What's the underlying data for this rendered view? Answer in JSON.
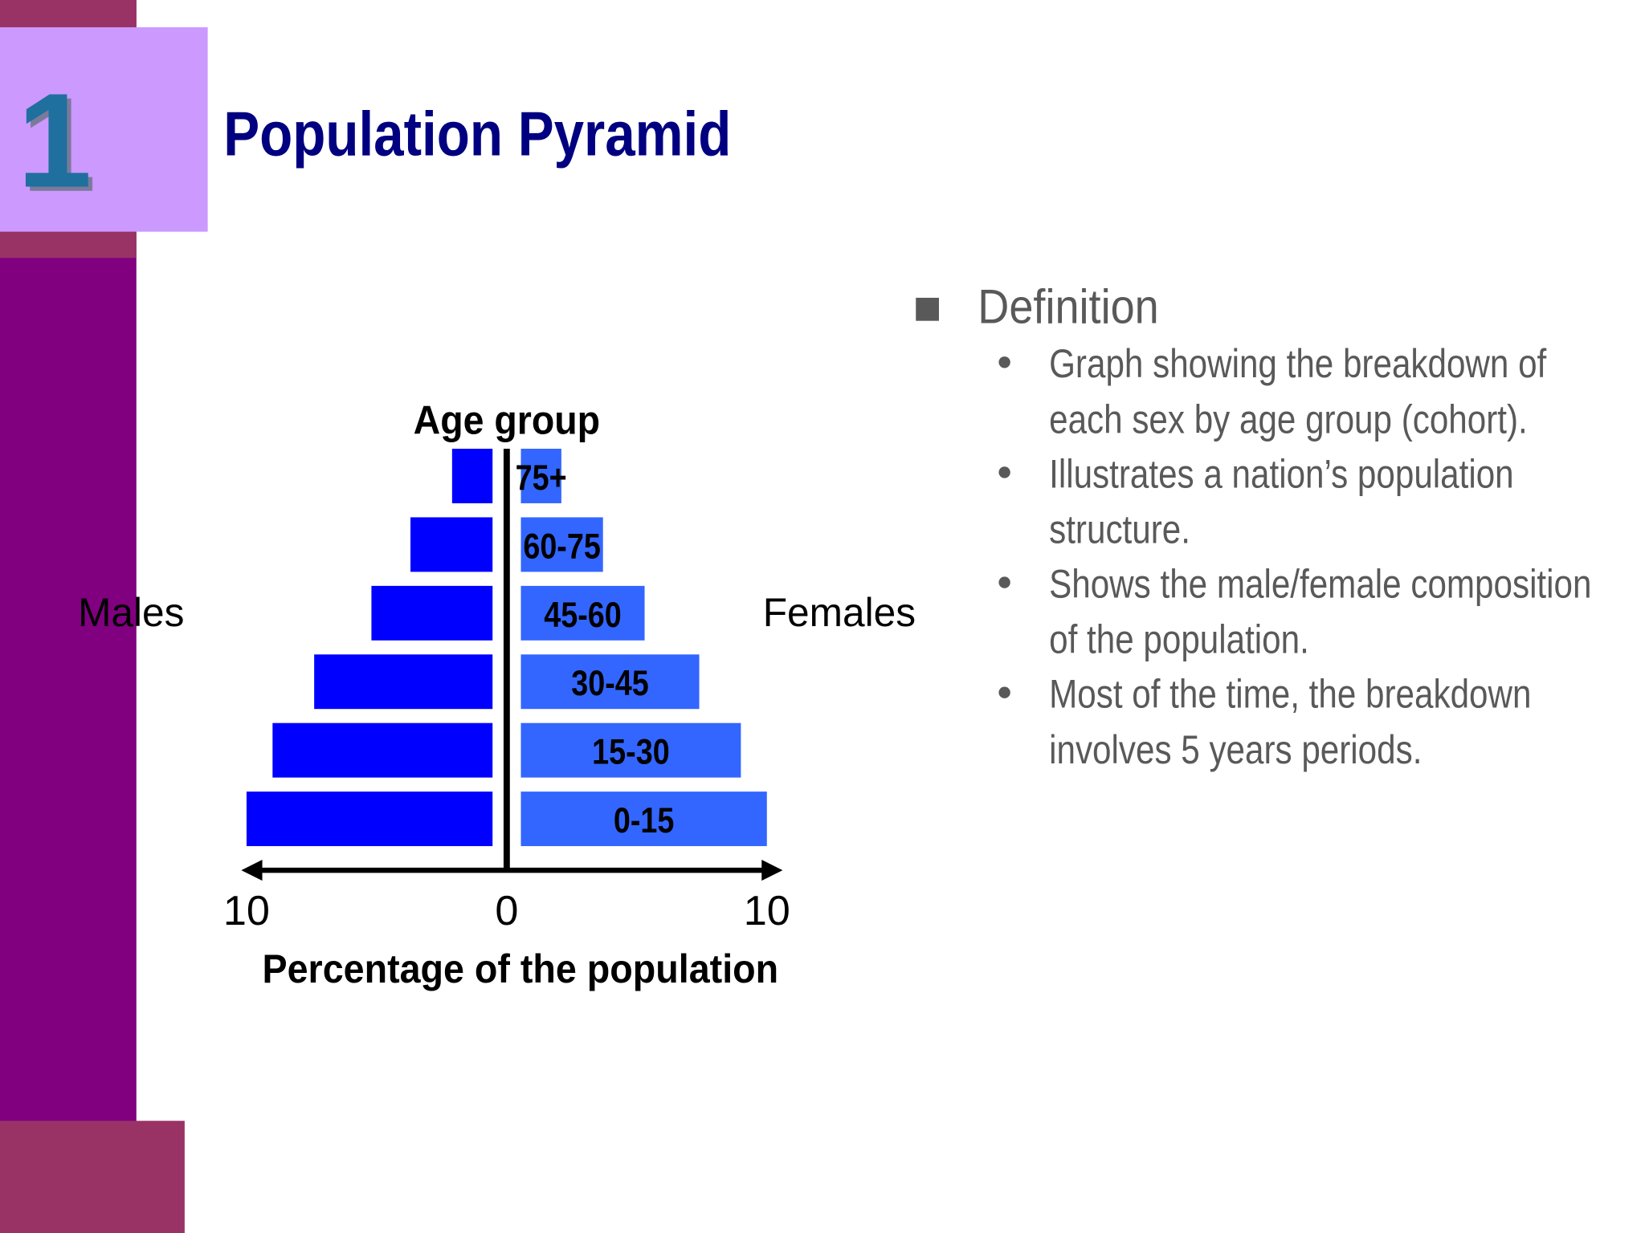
{
  "slide": {
    "number": "1",
    "title": "Population Pyramid",
    "heading": "Definition",
    "bullets": [
      "Graph showing the breakdown of each sex by age group (cohort).",
      "Illustrates a nation’s population structure.",
      "Shows the male/female composition of the population.",
      "Most of the time, the breakdown involves 5 years periods."
    ]
  },
  "chart_data": {
    "type": "pyramid",
    "y_label": "Age group",
    "x_label": "Percentage of the population",
    "categories": [
      "0-15",
      "15-30",
      "30-45",
      "45-60",
      "60-75",
      "75+"
    ],
    "series": [
      {
        "name": "Males",
        "color": "#0000ff",
        "values": [
          10,
          9,
          7.4,
          5.2,
          3.7,
          2.1
        ]
      },
      {
        "name": "Females",
        "color": "#3366ff",
        "values": [
          10,
          9,
          7.4,
          5.3,
          3.7,
          2.1
        ]
      }
    ],
    "xlim": [
      -10,
      10
    ],
    "xticks": [
      {
        "value": -10,
        "label": "10"
      },
      0,
      10
    ]
  }
}
